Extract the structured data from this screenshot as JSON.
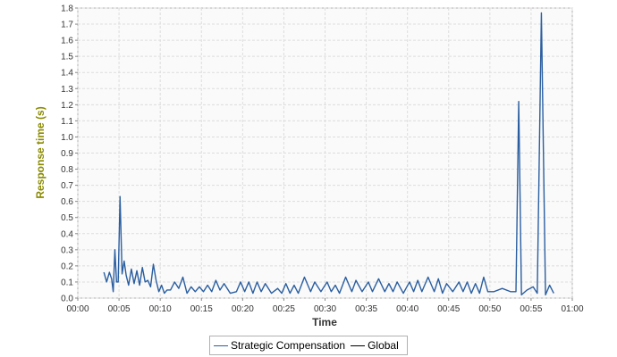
{
  "chart_data": {
    "type": "line",
    "xlabel": "Time",
    "ylabel": "Response time (s)",
    "x_unit": "mm:ss",
    "xlim": [
      "00:00",
      "01:00"
    ],
    "ylim": [
      0,
      1.8
    ],
    "grid": true,
    "legend_placement": "bottom",
    "x_ticks": [
      "00:00",
      "00:05",
      "00:10",
      "00:15",
      "00:20",
      "00:25",
      "00:30",
      "00:35",
      "00:40",
      "00:45",
      "00:50",
      "00:55",
      "01:00"
    ],
    "y_ticks": [
      "0.0",
      "0.1",
      "0.2",
      "0.3",
      "0.4",
      "0.5",
      "0.6",
      "0.7",
      "0.8",
      "0.9",
      "1.0",
      "1.1",
      "1.2",
      "1.3",
      "1.4",
      "1.5",
      "1.6",
      "1.7",
      "1.8"
    ],
    "series": [
      {
        "name": "Strategic Compensation",
        "color": "#2a5ea0",
        "x": [
          "00:03",
          "00:03",
          "00:03",
          "00:04",
          "00:04",
          "00:04",
          "00:04",
          "00:04",
          "00:05",
          "00:05",
          "00:05",
          "00:05",
          "00:06",
          "00:06",
          "00:06",
          "00:07",
          "00:07",
          "00:07",
          "00:08",
          "00:08",
          "00:08",
          "00:09",
          "00:09",
          "00:09",
          "00:10",
          "00:10",
          "00:10",
          "00:11",
          "00:11",
          "00:12",
          "00:12",
          "00:13",
          "00:13",
          "00:14",
          "00:14",
          "00:15",
          "00:15",
          "00:16",
          "00:16",
          "00:17",
          "00:17",
          "00:18",
          "00:19",
          "00:19",
          "00:20",
          "00:20",
          "00:21",
          "00:21",
          "00:22",
          "00:22",
          "00:23",
          "00:24",
          "00:24",
          "00:25",
          "00:25",
          "00:26",
          "00:26",
          "00:27",
          "00:28",
          "00:28",
          "00:29",
          "00:30",
          "00:30",
          "00:31",
          "00:31",
          "00:32",
          "00:33",
          "00:33",
          "00:34",
          "00:35",
          "00:35",
          "00:36",
          "00:37",
          "00:37",
          "00:38",
          "00:38",
          "00:39",
          "00:40",
          "00:40",
          "00:41",
          "00:41",
          "00:42",
          "00:43",
          "00:43",
          "00:44",
          "00:44",
          "00:45",
          "00:46",
          "00:46",
          "00:47",
          "00:47",
          "00:48",
          "00:48",
          "00:49",
          "00:49",
          "00:50",
          "00:51",
          "00:52",
          "00:53",
          "00:53",
          "00:53",
          "00:54",
          "00:55",
          "00:55",
          "00:56",
          "00:56",
          "00:57",
          "00:57"
        ],
        "values": [
          0.16,
          0.1,
          0.16,
          0.12,
          0.04,
          0.3,
          0.1,
          0.1,
          0.63,
          0.15,
          0.23,
          0.14,
          0.08,
          0.18,
          0.09,
          0.17,
          0.08,
          0.19,
          0.1,
          0.11,
          0.07,
          0.21,
          0.11,
          0.04,
          0.08,
          0.03,
          0.05,
          0.05,
          0.1,
          0.06,
          0.13,
          0.03,
          0.07,
          0.04,
          0.07,
          0.04,
          0.08,
          0.04,
          0.11,
          0.05,
          0.09,
          0.03,
          0.04,
          0.1,
          0.04,
          0.1,
          0.03,
          0.1,
          0.04,
          0.09,
          0.03,
          0.06,
          0.03,
          0.09,
          0.03,
          0.08,
          0.03,
          0.13,
          0.04,
          0.1,
          0.04,
          0.1,
          0.04,
          0.08,
          0.03,
          0.13,
          0.04,
          0.11,
          0.04,
          0.1,
          0.04,
          0.12,
          0.04,
          0.09,
          0.04,
          0.1,
          0.03,
          0.1,
          0.04,
          0.11,
          0.04,
          0.13,
          0.04,
          0.12,
          0.03,
          0.09,
          0.04,
          0.1,
          0.04,
          0.1,
          0.03,
          0.09,
          0.03,
          0.13,
          0.04,
          0.04,
          0.06,
          0.04,
          0.04,
          1.22,
          0.02,
          0.05,
          0.07,
          0.03,
          1.77,
          0.02,
          0.08,
          0.03
        ]
      }
    ],
    "legend": [
      {
        "label": "Strategic Compensation",
        "color": "#2a5ea0"
      },
      {
        "label": "Global",
        "color": "#000000"
      }
    ],
    "ylabel_color": "#8a8a00"
  }
}
